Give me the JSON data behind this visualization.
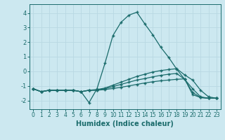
{
  "xlabel": "Humidex (Indice chaleur)",
  "background_color": "#cce8f0",
  "grid_color": "#b8d8e2",
  "line_color": "#1a6b6b",
  "xlim": [
    -0.5,
    23.5
  ],
  "ylim": [
    -2.6,
    4.6
  ],
  "xticks": [
    0,
    1,
    2,
    3,
    4,
    5,
    6,
    7,
    8,
    9,
    10,
    11,
    12,
    13,
    14,
    15,
    16,
    17,
    18,
    19,
    20,
    21,
    22,
    23
  ],
  "yticks": [
    -2,
    -1,
    0,
    1,
    2,
    3,
    4
  ],
  "x_vals": [
    0,
    1,
    2,
    3,
    4,
    5,
    6,
    7,
    8,
    9,
    10,
    11,
    12,
    13,
    14,
    15,
    16,
    17,
    18,
    19,
    20,
    21,
    22,
    23
  ],
  "series": [
    [
      -1.2,
      -1.4,
      -1.3,
      -1.3,
      -1.3,
      -1.3,
      -1.4,
      -2.15,
      -1.2,
      0.55,
      2.45,
      3.35,
      3.85,
      4.05,
      3.25,
      2.5,
      1.65,
      0.95,
      0.15,
      -0.55,
      -1.2,
      -1.75,
      -1.85,
      -1.85
    ],
    [
      -1.2,
      -1.4,
      -1.3,
      -1.3,
      -1.3,
      -1.3,
      -1.4,
      -1.3,
      -1.25,
      -1.15,
      -0.95,
      -0.75,
      -0.55,
      -0.35,
      -0.2,
      -0.05,
      0.05,
      0.12,
      0.18,
      -0.25,
      -0.6,
      -1.3,
      -1.75,
      -1.85
    ],
    [
      -1.2,
      -1.4,
      -1.3,
      -1.3,
      -1.3,
      -1.3,
      -1.4,
      -1.3,
      -1.3,
      -1.2,
      -1.05,
      -0.9,
      -0.75,
      -0.6,
      -0.5,
      -0.38,
      -0.28,
      -0.2,
      -0.15,
      -0.55,
      -1.45,
      -1.8,
      -1.85,
      -1.85
    ],
    [
      -1.2,
      -1.4,
      -1.3,
      -1.3,
      -1.3,
      -1.3,
      -1.4,
      -1.3,
      -1.3,
      -1.25,
      -1.18,
      -1.1,
      -1.0,
      -0.9,
      -0.8,
      -0.72,
      -0.65,
      -0.6,
      -0.55,
      -0.52,
      -1.6,
      -1.8,
      -1.85,
      -1.85
    ]
  ]
}
